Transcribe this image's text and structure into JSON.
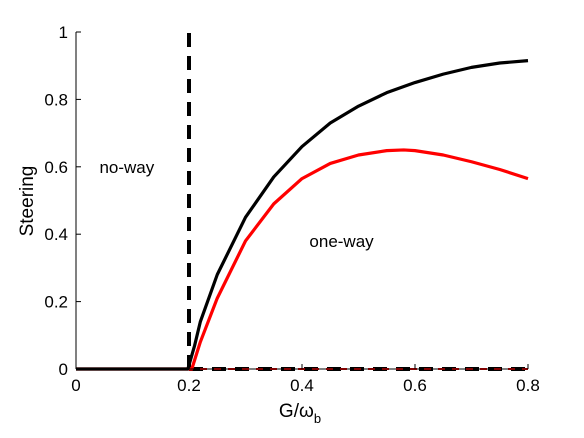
{
  "chart_data": {
    "type": "line",
    "title": "",
    "xlabel": "G/ω",
    "xlabel_subscript": "b",
    "ylabel": "Steering",
    "xlim": [
      0,
      0.8
    ],
    "ylim": [
      0,
      1
    ],
    "x_ticks": [
      "0",
      "0.2",
      "0.4",
      "0.6",
      "0.8"
    ],
    "y_ticks": [
      "0",
      "0.2",
      "0.4",
      "0.6",
      "0.8",
      "1"
    ],
    "grid": false,
    "legend": "none",
    "annotations": [
      {
        "text": "no-way",
        "x": 0.09,
        "y": 0.6
      },
      {
        "text": "one-way",
        "x": 0.47,
        "y": 0.38
      }
    ],
    "series": [
      {
        "color": "#000000",
        "style": "solid",
        "x": [
          0,
          0.198,
          0.21,
          0.22,
          0.25,
          0.3,
          0.35,
          0.4,
          0.45,
          0.5,
          0.55,
          0.6,
          0.65,
          0.7,
          0.75,
          0.8
        ],
        "y": [
          0,
          0,
          0.07,
          0.14,
          0.28,
          0.45,
          0.57,
          0.66,
          0.73,
          0.78,
          0.82,
          0.85,
          0.875,
          0.895,
          0.908,
          0.915
        ]
      },
      {
        "color": "#ff0000",
        "style": "solid",
        "x": [
          0,
          0.205,
          0.22,
          0.25,
          0.3,
          0.35,
          0.4,
          0.45,
          0.5,
          0.55,
          0.58,
          0.6,
          0.65,
          0.7,
          0.75,
          0.8
        ],
        "y": [
          0,
          0,
          0.08,
          0.21,
          0.38,
          0.49,
          0.565,
          0.61,
          0.635,
          0.648,
          0.65,
          0.648,
          0.635,
          0.615,
          0.592,
          0.565
        ]
      },
      {
        "color": "#000000",
        "style": "dashed",
        "x": [
          0.2,
          0.2
        ],
        "y": [
          0,
          1
        ]
      },
      {
        "color": "#000000",
        "style": "dashed",
        "x": [
          0.2,
          0.8
        ],
        "y": [
          0,
          0
        ]
      },
      {
        "color": "#ff0000",
        "style": "dashed",
        "x": [
          0.2,
          0.8
        ],
        "y": [
          0,
          0
        ]
      }
    ]
  }
}
